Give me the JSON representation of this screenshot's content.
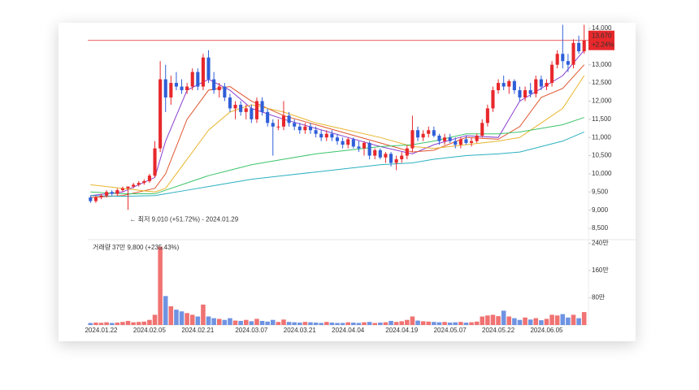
{
  "chart_data": {
    "type": "candlestick",
    "categories": [
      null,
      null,
      "2024.01.22",
      null,
      null,
      null,
      null,
      null,
      null,
      null,
      null,
      "2024.02.05",
      null,
      null,
      null,
      null,
      null,
      null,
      null,
      null,
      "2024.02.21",
      null,
      null,
      null,
      null,
      null,
      null,
      null,
      null,
      null,
      "2024.03.07",
      null,
      null,
      null,
      null,
      null,
      null,
      null,
      null,
      "2024.03.21",
      null,
      null,
      null,
      null,
      null,
      null,
      null,
      null,
      "2024.04.04",
      null,
      null,
      null,
      null,
      null,
      null,
      null,
      null,
      null,
      "2024.04.19",
      null,
      null,
      null,
      null,
      null,
      null,
      null,
      null,
      "2024.05.07",
      null,
      null,
      null,
      null,
      null,
      null,
      null,
      null,
      "2024.05.22",
      null,
      null,
      null,
      null,
      null,
      null,
      null,
      null,
      "2024.06.05",
      null,
      null,
      null,
      null,
      null,
      null,
      null
    ],
    "ohlc": [
      [
        9350,
        9400,
        9200,
        9250
      ],
      [
        9250,
        9400,
        9200,
        9350
      ],
      [
        9350,
        9450,
        9300,
        9400
      ],
      [
        9400,
        9550,
        9350,
        9500
      ],
      [
        9500,
        9550,
        9400,
        9450
      ],
      [
        9450,
        9600,
        9400,
        9550
      ],
      [
        9550,
        9650,
        9500,
        9600
      ],
      [
        9600,
        9650,
        9010,
        9650
      ],
      [
        9650,
        9750,
        9600,
        9700
      ],
      [
        9700,
        9800,
        9650,
        9750
      ],
      [
        9750,
        9850,
        9700,
        9800
      ],
      [
        9800,
        10000,
        9750,
        9950
      ],
      [
        9950,
        10900,
        9900,
        10700
      ],
      [
        10700,
        13100,
        10600,
        12600
      ],
      [
        12600,
        13000,
        11700,
        12100
      ],
      [
        12100,
        12700,
        11900,
        12500
      ],
      [
        12500,
        12800,
        12300,
        12400
      ],
      [
        12400,
        12600,
        12200,
        12300
      ],
      [
        12300,
        12500,
        12200,
        12400
      ],
      [
        12400,
        12900,
        12300,
        12800
      ],
      [
        12800,
        12900,
        12300,
        12400
      ],
      [
        12400,
        13300,
        12300,
        13200
      ],
      [
        13200,
        13400,
        12500,
        12600
      ],
      [
        12600,
        12800,
        12200,
        12300
      ],
      [
        12300,
        12500,
        12100,
        12400
      ],
      [
        12400,
        12500,
        12000,
        12100
      ],
      [
        12100,
        12200,
        11700,
        11800
      ],
      [
        11800,
        12000,
        11500,
        11900
      ],
      [
        11900,
        12000,
        11600,
        11700
      ],
      [
        11700,
        11900,
        11500,
        11800
      ],
      [
        11800,
        11900,
        11400,
        11500
      ],
      [
        11500,
        12100,
        11400,
        12000
      ],
      [
        12000,
        12100,
        11600,
        11700
      ],
      [
        11700,
        11800,
        11300,
        11400
      ],
      [
        11400,
        11500,
        10500,
        11300
      ],
      [
        11300,
        11500,
        11200,
        11300
      ],
      [
        11300,
        12000,
        11200,
        11600
      ],
      [
        11600,
        11700,
        11300,
        11400
      ],
      [
        11400,
        11500,
        11200,
        11300
      ],
      [
        11300,
        11400,
        11100,
        11200
      ],
      [
        11200,
        11400,
        11100,
        11300
      ],
      [
        11300,
        11400,
        11100,
        11200
      ],
      [
        11200,
        11300,
        11000,
        11100
      ],
      [
        11100,
        11200,
        10900,
        11000
      ],
      [
        11000,
        11200,
        10900,
        11100
      ],
      [
        11100,
        11200,
        10900,
        11000
      ],
      [
        11000,
        11100,
        10800,
        10900
      ],
      [
        10900,
        11000,
        10700,
        10800
      ],
      [
        10800,
        11000,
        10700,
        10950
      ],
      [
        10950,
        11000,
        10700,
        10750
      ],
      [
        10750,
        10900,
        10600,
        10700
      ],
      [
        10700,
        10900,
        10500,
        10850
      ],
      [
        10850,
        10900,
        10400,
        10500
      ],
      [
        10500,
        10700,
        10400,
        10650
      ],
      [
        10650,
        10700,
        10400,
        10450
      ],
      [
        10450,
        10600,
        10300,
        10550
      ],
      [
        10550,
        10600,
        10200,
        10300
      ],
      [
        10300,
        10500,
        10100,
        10400
      ],
      [
        10400,
        10600,
        10300,
        10500
      ],
      [
        10500,
        10800,
        10400,
        10700
      ],
      [
        10700,
        11600,
        10600,
        11200
      ],
      [
        11200,
        11300,
        10900,
        11000
      ],
      [
        11000,
        11200,
        10900,
        11100
      ],
      [
        11100,
        11300,
        11000,
        11200
      ],
      [
        11200,
        11300,
        11000,
        11050
      ],
      [
        11050,
        11100,
        10800,
        10900
      ],
      [
        10900,
        11100,
        10800,
        11000
      ],
      [
        11000,
        11100,
        10850,
        10900
      ],
      [
        10900,
        11000,
        10700,
        10800
      ],
      [
        10800,
        11000,
        10700,
        10950
      ],
      [
        10950,
        11050,
        10800,
        10850
      ],
      [
        10850,
        11000,
        10750,
        10900
      ],
      [
        10900,
        11100,
        10850,
        11050
      ],
      [
        11050,
        11500,
        11000,
        11400
      ],
      [
        11400,
        11900,
        11300,
        11800
      ],
      [
        11800,
        12400,
        11700,
        12300
      ],
      [
        12300,
        12600,
        12200,
        12500
      ],
      [
        12500,
        12700,
        12300,
        12400
      ],
      [
        12400,
        12600,
        12200,
        12550
      ],
      [
        12550,
        12600,
        12200,
        12300
      ],
      [
        12300,
        12400,
        12000,
        12100
      ],
      [
        12100,
        12400,
        12000,
        12300
      ],
      [
        12300,
        12500,
        12100,
        12200
      ],
      [
        12200,
        12700,
        12100,
        12600
      ],
      [
        12600,
        12700,
        12300,
        12400
      ],
      [
        12400,
        12600,
        12300,
        12500
      ],
      [
        12500,
        13100,
        12400,
        13000
      ],
      [
        13000,
        13400,
        12900,
        13300
      ],
      [
        13300,
        14100,
        12900,
        13100
      ],
      [
        13100,
        13300,
        12800,
        13000
      ],
      [
        13000,
        13700,
        12900,
        13600
      ],
      [
        13600,
        13800,
        13300,
        13370
      ],
      [
        13370,
        14100,
        13300,
        13670
      ]
    ],
    "up_color": "#e8282b",
    "down_color": "#2f5fd8",
    "up_volume_color": "#f07272",
    "down_volume_color": "#6f93e2",
    "moving_averages": [
      {
        "color": "#8a3fd1",
        "x": [
          0,
          6,
          12,
          14,
          18,
          22,
          26,
          30,
          36,
          42,
          48,
          54,
          60,
          64,
          70,
          76,
          80,
          84,
          88,
          92
        ],
        "values": [
          9400,
          9500,
          9900,
          10900,
          12300,
          12600,
          12300,
          11800,
          11500,
          11250,
          11000,
          10750,
          10550,
          10800,
          11050,
          11000,
          12000,
          12350,
          12700,
          13400
        ]
      },
      {
        "color": "#e0552e",
        "x": [
          0,
          6,
          12,
          14,
          18,
          22,
          26,
          30,
          36,
          42,
          48,
          54,
          60,
          64,
          70,
          76,
          80,
          84,
          88,
          92
        ],
        "values": [
          9350,
          9400,
          9600,
          10000,
          11500,
          12300,
          12400,
          12000,
          11600,
          11350,
          11100,
          10850,
          10600,
          10650,
          11000,
          10950,
          11300,
          12100,
          12350,
          13000
        ]
      },
      {
        "color": "#e8b52e",
        "x": [
          0,
          6,
          12,
          14,
          18,
          22,
          26,
          30,
          36,
          42,
          48,
          54,
          60,
          64,
          70,
          76,
          80,
          84,
          88,
          92
        ],
        "values": [
          9700,
          9600,
          9500,
          9600,
          10400,
          11200,
          11700,
          11900,
          11700,
          11400,
          11200,
          11000,
          10750,
          10700,
          10800,
          10900,
          11000,
          11400,
          11800,
          12700
        ]
      },
      {
        "color": "#3cc46a",
        "x": [
          0,
          6,
          12,
          14,
          18,
          22,
          26,
          30,
          36,
          42,
          48,
          54,
          60,
          64,
          70,
          76,
          80,
          84,
          88,
          92
        ],
        "values": [
          9500,
          9450,
          9450,
          9550,
          9750,
          9950,
          10100,
          10250,
          10400,
          10550,
          10650,
          10750,
          10800,
          10900,
          11100,
          11100,
          11150,
          11250,
          11350,
          11550
        ]
      },
      {
        "color": "#2bb0c0",
        "x": [
          0,
          6,
          12,
          14,
          18,
          22,
          26,
          30,
          36,
          42,
          48,
          54,
          60,
          64,
          70,
          76,
          80,
          84,
          88,
          92
        ],
        "values": [
          9400,
          9380,
          9400,
          9450,
          9550,
          9650,
          9750,
          9850,
          9950,
          10050,
          10150,
          10250,
          10300,
          10400,
          10500,
          10550,
          10600,
          10750,
          10900,
          11150
        ]
      }
    ],
    "ylim": [
      8300,
      14200
    ],
    "yticks": [
      {
        "value": 14000,
        "label": "14,000"
      },
      {
        "value": 13500,
        "label": "13,500"
      },
      {
        "value": 13000,
        "label": "13,000"
      },
      {
        "value": 12500,
        "label": "12,500"
      },
      {
        "value": 12000,
        "label": "12,000"
      },
      {
        "value": 11500,
        "label": "11,500"
      },
      {
        "value": 11000,
        "label": "11,000"
      },
      {
        "value": 10500,
        "label": "10,500"
      },
      {
        "value": 10000,
        "label": "10,000"
      },
      {
        "value": 9500,
        "label": "9,500"
      },
      {
        "value": 9000,
        "label": "9,000"
      },
      {
        "value": 8500,
        "label": "8,500"
      }
    ],
    "last_price": {
      "value": 13670,
      "label": "13,670"
    },
    "last_change": "+2.24%",
    "price_line_color": "#e8282b",
    "low_annotation": "← 최저 9,010 (+51.72%) - 2024.01.29",
    "low_index": 7,
    "volume_title": "거래량",
    "volume_summary": "37만 9,800 (+235.43%)",
    "volumes": [
      60000,
      70000,
      65000,
      80000,
      60000,
      70000,
      90000,
      120000,
      80000,
      90000,
      100000,
      150000,
      300000,
      2300000,
      850000,
      550000,
      450000,
      400000,
      350000,
      300000,
      250000,
      600000,
      250000,
      200000,
      180000,
      150000,
      200000,
      130000,
      120000,
      150000,
      110000,
      180000,
      120000,
      100000,
      150000,
      90000,
      160000,
      90000,
      80000,
      70000,
      90000,
      80000,
      70000,
      60000,
      90000,
      70000,
      60000,
      60000,
      80000,
      70000,
      60000,
      80000,
      90000,
      60000,
      70000,
      80000,
      120000,
      90000,
      110000,
      150000,
      250000,
      130000,
      110000,
      100000,
      90000,
      80000,
      90000,
      70000,
      80000,
      90000,
      70000,
      80000,
      100000,
      250000,
      280000,
      300000,
      260000,
      420000,
      250000,
      200000,
      150000,
      220000,
      160000,
      200000,
      140000,
      180000,
      300000,
      280000,
      320000,
      220000,
      300000,
      200000,
      379800
    ],
    "vlim": [
      0,
      2600000
    ],
    "vticks": [
      {
        "value": 800000,
        "label": "80만"
      },
      {
        "value": 1600000,
        "label": "160만"
      },
      {
        "value": 2400000,
        "label": "240만"
      }
    ]
  }
}
